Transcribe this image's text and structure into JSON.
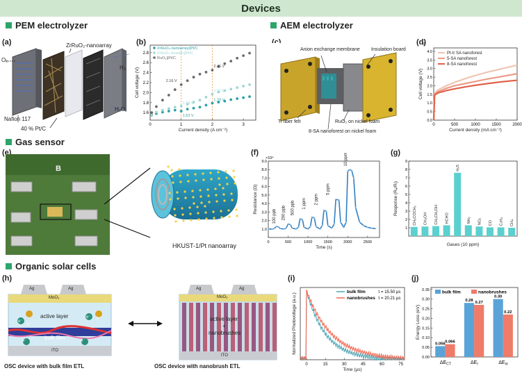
{
  "banner": {
    "title": "Devices"
  },
  "sections": {
    "pem": "PEM electrolyzer",
    "aem": "AEM electrolyzer",
    "gas": "Gas sensor",
    "osc": "Organic solar cells"
  },
  "panel_labels": {
    "a": "(a)",
    "b": "(b)",
    "c": "(c)",
    "d": "(d)",
    "e": "(e)",
    "f": "(f)",
    "g": "(g)",
    "h": "(h)",
    "i": "(i)",
    "j": "(j)"
  },
  "panel_a": {
    "nanoarray": "ZrRuO₂-nanoarray",
    "o2": "O₂",
    "h2": "H₂",
    "h2o": "H₂O",
    "nafion": "Nafion 117",
    "ptc": "40 % Pt/C"
  },
  "panel_c": {
    "membrane": "Anion exchange membrane",
    "board": "Insulation board",
    "felt": "Ti fiber felt",
    "ruo2": "RuO₂ on nickel foam",
    "nanoforest": "8-SA nanoforest on nickel foam"
  },
  "panel_e": {
    "board_letter": "B",
    "nanoarray": "HKUST-1/Pt nanoarray"
  },
  "panel_h": {
    "ag": "Ag",
    "moo3": "MoO₃",
    "ito": "ITO",
    "active": "active layer",
    "bulk": "bulk film",
    "active2": "active layer",
    "plus": "+",
    "nanobrushes": "nanobrushes",
    "cap_left": "OSC device with bulk film ETL",
    "cap_right": "OSC device with nanobrush ETL",
    "hplus": "h⁺",
    "eminus": "e⁻"
  },
  "colors": {
    "accent": "#2da56b",
    "banner": "#cfe7cf",
    "teal": "#4aa9b8",
    "salmon": "#ef7b69",
    "blue": "#5aa3d8"
  },
  "chart_data": [
    {
      "id": "b",
      "type": "scatter",
      "xlabel": "Current density (A cm⁻²)",
      "ylabel": "Cell voltage (V)",
      "xlim": [
        0,
        3.4
      ],
      "ylim": [
        1.45,
        2.95
      ],
      "xticks": [
        "0",
        "1",
        "2",
        "3"
      ],
      "yticks": [
        "1.6",
        "1.8",
        "2.0",
        "2.2",
        "2.4",
        "2.6",
        "2.8"
      ],
      "series": [
        {
          "name": "ZrRuO₂-nanoarray||Pt/C",
          "color": "#2b9fa5",
          "x": [
            0.05,
            0.2,
            0.4,
            0.6,
            0.8,
            1.0,
            1.2,
            1.4,
            1.6,
            1.8,
            2.0,
            2.2,
            2.4,
            2.6,
            2.8,
            3.0,
            3.2
          ],
          "y": [
            1.55,
            1.58,
            1.61,
            1.63,
            1.65,
            1.63,
            1.67,
            1.69,
            1.71,
            1.75,
            1.79,
            1.81,
            1.83,
            1.86,
            1.88,
            1.9,
            1.92
          ]
        },
        {
          "name": "ZrRuO₂-bowder||Pt/C",
          "color": "#9fd6d6",
          "x": [
            0.05,
            0.2,
            0.4,
            0.6,
            0.8,
            1.0,
            1.2,
            1.4,
            1.6,
            1.8,
            2.0,
            2.2,
            2.4,
            2.6,
            2.8,
            3.0,
            3.2
          ],
          "y": [
            1.56,
            1.61,
            1.65,
            1.68,
            1.71,
            1.73,
            1.77,
            1.81,
            1.85,
            1.91,
            1.97,
            2.01,
            2.04,
            2.07,
            2.1,
            2.13,
            2.16
          ]
        },
        {
          "name": "RuO₂||Pt/C",
          "color": "#6b6b6b",
          "x": [
            0.05,
            0.2,
            0.4,
            0.6,
            0.8,
            1.0,
            1.2,
            1.4,
            1.6,
            1.8,
            2.0,
            2.2,
            2.4,
            2.6,
            2.8,
            3.0,
            3.2
          ],
          "y": [
            1.6,
            1.72,
            1.85,
            1.95,
            2.06,
            2.16,
            2.24,
            2.31,
            2.37,
            2.41,
            2.45,
            2.52,
            2.58,
            2.63,
            2.69,
            2.74,
            2.79
          ]
        }
      ],
      "annotations": [
        {
          "text": "2.16 V",
          "x": 1.0,
          "y": 2.16
        },
        {
          "text": "2.45 V",
          "x": 2.0,
          "y": 2.45
        },
        {
          "text": "1.73 V",
          "x": 1.0,
          "y": 1.73
        },
        {
          "text": "1.97 V",
          "x": 2.0,
          "y": 1.97
        },
        {
          "text": "1.63 V",
          "x": 1.0,
          "y": 1.63
        },
        {
          "text": "1.79 V",
          "x": 2.0,
          "y": 1.79
        }
      ]
    },
    {
      "id": "d",
      "type": "line",
      "corner": "d",
      "xlabel": "Current density (mA cm⁻²)",
      "ylabel": "Cell voltage (V)",
      "xlim": [
        0,
        2000
      ],
      "ylim": [
        0,
        4.2
      ],
      "xticks": [
        "0",
        "500",
        "1000",
        "1500",
        "2000"
      ],
      "yticks": [
        "0.0",
        "0.5",
        "1.0",
        "1.5",
        "2.0",
        "2.5",
        "3.0",
        "3.5",
        "4.0"
      ],
      "series": [
        {
          "name": "Pt-Ir SA nanoforest",
          "color": "#f0c4b2",
          "x": [
            0,
            20,
            100,
            300,
            500,
            800,
            1000,
            1300,
            1600,
            2000
          ],
          "y": [
            0,
            1.55,
            1.75,
            2.0,
            2.2,
            2.45,
            2.6,
            2.8,
            2.97,
            3.2
          ]
        },
        {
          "name": "5-SA nanoforest",
          "color": "#ec9a86",
          "x": [
            0,
            20,
            100,
            300,
            500,
            800,
            1000,
            1300,
            1600,
            2000
          ],
          "y": [
            0,
            1.5,
            1.65,
            1.85,
            2.0,
            2.15,
            2.25,
            2.4,
            2.52,
            2.7
          ]
        },
        {
          "name": "8-SA nanoforest",
          "color": "#e0614b",
          "x": [
            0,
            20,
            100,
            300,
            500,
            800,
            1000,
            1300,
            1600,
            2000
          ],
          "y": [
            0,
            1.45,
            1.58,
            1.72,
            1.82,
            1.95,
            2.03,
            2.13,
            2.22,
            2.32
          ]
        }
      ]
    },
    {
      "id": "f",
      "type": "line",
      "yexp": "×10⁶",
      "xlabel": "Time (s)",
      "ylabel": "Resistance (Ω)",
      "xlim": [
        0,
        2800
      ],
      "ylim": [
        0,
        9
      ],
      "xticks": [
        "0",
        "500",
        "1000",
        "1500",
        "2000",
        "2500"
      ],
      "yticks": [
        "1.0",
        "2.0",
        "3.0",
        "4.0",
        "5.0",
        "6.0",
        "7.0",
        "8.0",
        "9.0"
      ],
      "color": "#2f7fc1",
      "x": [
        0,
        100,
        150,
        200,
        260,
        300,
        400,
        450,
        500,
        560,
        600,
        700,
        760,
        800,
        860,
        900,
        1000,
        1060,
        1100,
        1160,
        1200,
        1300,
        1360,
        1400,
        1460,
        1500,
        1600,
        1660,
        1700,
        1780,
        1820,
        1900,
        1960,
        2000,
        2050,
        2100,
        2150,
        2200,
        2300,
        2400,
        2500,
        2600,
        2700
      ],
      "y": [
        1.0,
        1.0,
        1.05,
        1.3,
        1.25,
        1.05,
        1.0,
        1.1,
        1.6,
        1.5,
        1.1,
        1.0,
        1.2,
        2.2,
        2.1,
        1.2,
        1.0,
        1.3,
        2.4,
        2.3,
        1.3,
        1.0,
        1.4,
        3.2,
        3.1,
        1.4,
        1.1,
        1.6,
        4.5,
        4.4,
        1.8,
        1.2,
        1.8,
        7.8,
        8.0,
        7.9,
        7.0,
        3.5,
        1.8,
        1.4,
        1.2,
        1.1,
        1.05
      ],
      "labels": [
        "100 ppb",
        "200 ppb",
        "500 ppb",
        "1 ppm",
        "2 ppm",
        "5 ppm",
        "10 ppm"
      ]
    },
    {
      "id": "g",
      "type": "bar",
      "xlabel": "Gases (10 ppm)",
      "ylabel": "Response (Rₐ/Rᵢ)",
      "ylim": [
        0,
        9
      ],
      "yticks": [
        "1",
        "2",
        "3",
        "4",
        "5",
        "6",
        "7",
        "8",
        "9"
      ],
      "categories": [
        "CH₃COCH₃",
        "CH₃OH",
        "CH₃CH₂OH",
        "HCHO",
        "H₂S",
        "NH₃",
        "NO₂",
        "CO",
        "C₂H₄",
        "CH₄"
      ],
      "values": [
        1.1,
        1.15,
        1.2,
        1.3,
        7.6,
        1.3,
        1.15,
        1.05,
        1.05,
        1.0
      ],
      "color": "#5bd0cf"
    },
    {
      "id": "i",
      "type": "line",
      "xlabel": "Time (μs)",
      "ylabel": "Normalized Photovoltage (a.u.)",
      "xlim": [
        -5,
        78
      ],
      "ylim": [
        0,
        1.05
      ],
      "xticks": [
        "0",
        "15",
        "30",
        "45",
        "60",
        "75"
      ],
      "series": [
        {
          "name": "bulk film",
          "color": "#4aa7b7",
          "tau": "τ = 15.50 μs",
          "decay": 15.5
        },
        {
          "name": "nanobrushes",
          "color": "#ef6a55",
          "tau": "τ = 20.21 μs",
          "decay": 20.21
        }
      ]
    },
    {
      "id": "j",
      "type": "bar",
      "ylabel": "Energy Loss (eV)",
      "ylim": [
        0,
        0.36
      ],
      "yticks": [
        "0.00",
        "0.05",
        "0.10",
        "0.15",
        "0.20",
        "0.25",
        "0.30",
        "0.35"
      ],
      "categories": [
        "ΔE_CT",
        "ΔE_r",
        "ΔE_nr"
      ],
      "series": [
        {
          "name": "bulk film",
          "color": "#5aa3d8",
          "values": [
            0.056,
            0.28,
            0.3
          ],
          "labels": [
            "0.056",
            "0.28",
            "0.30"
          ]
        },
        {
          "name": "nanobrushes",
          "color": "#ef7b69",
          "values": [
            0.066,
            0.27,
            0.22
          ],
          "labels": [
            "0.066",
            "0.27",
            "0.22"
          ]
        }
      ]
    }
  ]
}
